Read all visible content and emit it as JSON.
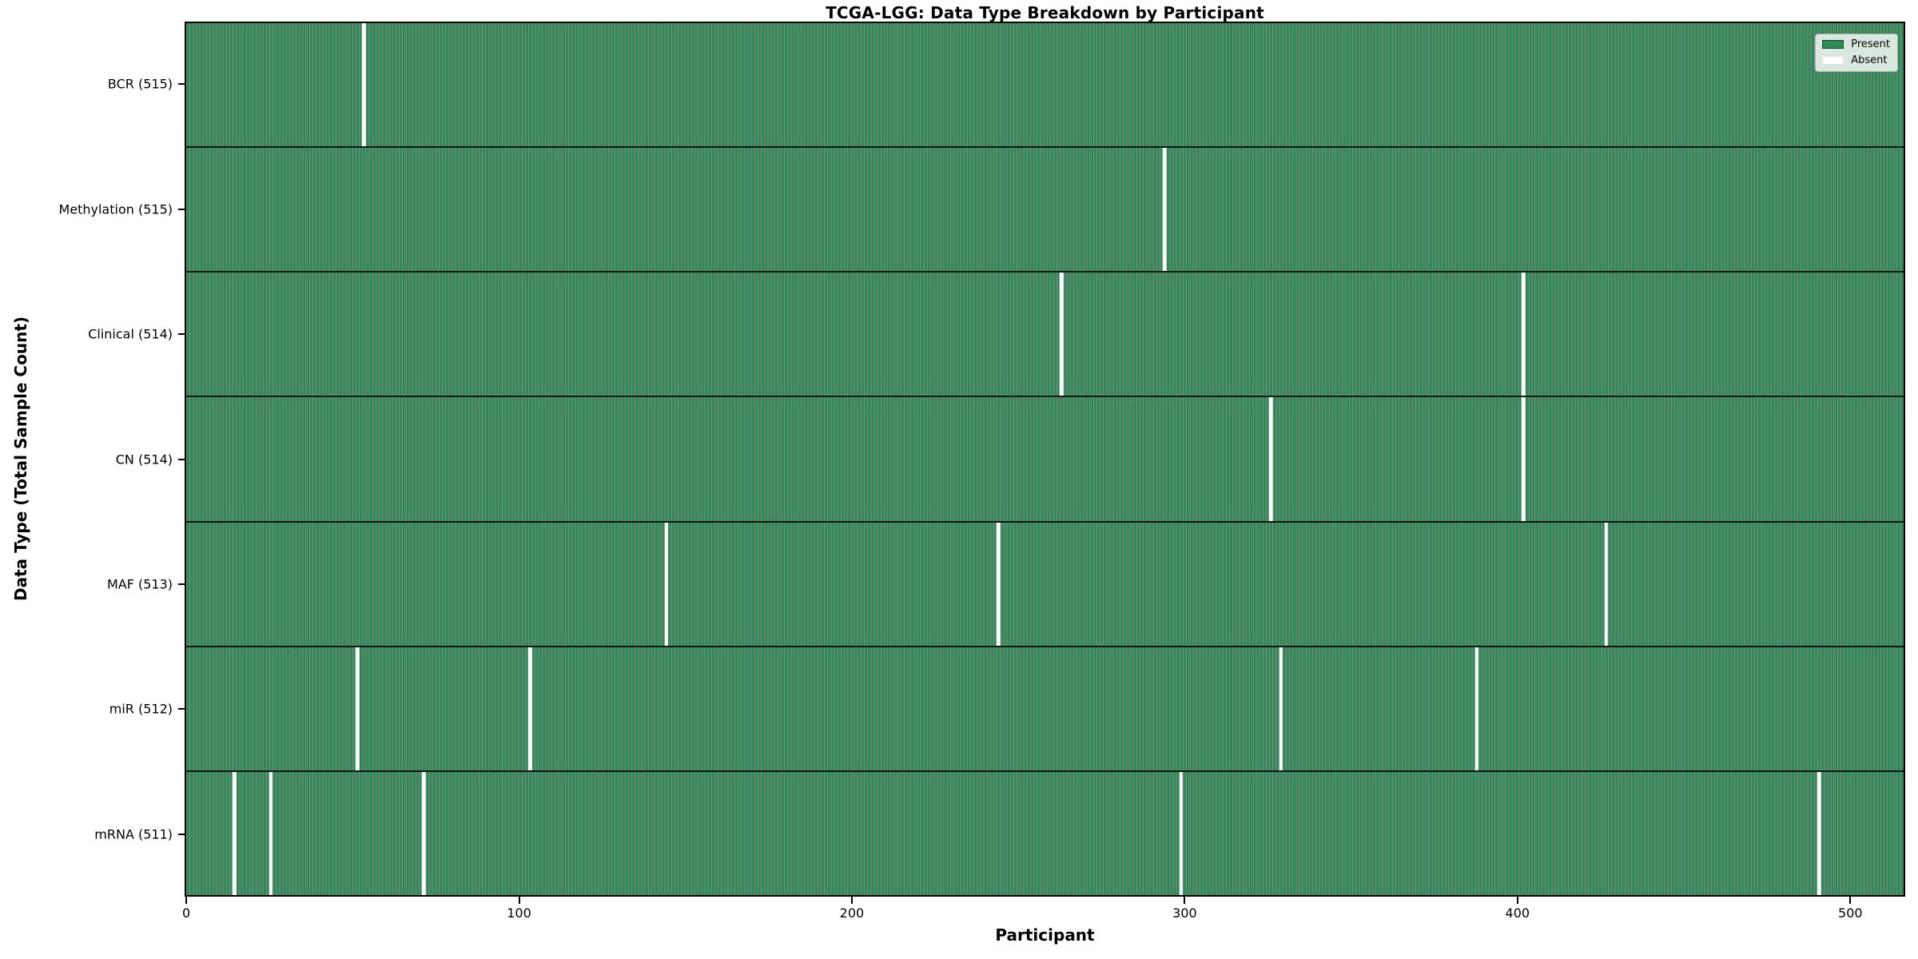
{
  "chart_data": {
    "type": "heatmap",
    "title": "TCGA-LGG: Data Type Breakdown by Participant",
    "xlabel": "Participant",
    "ylabel": "Data Type (Total Sample Count)",
    "x_ticks": [
      0,
      100,
      200,
      300,
      400,
      500
    ],
    "xlim": [
      -0.5,
      516.5
    ],
    "n_participants": 516,
    "grid": false,
    "legend": {
      "position": "upper right",
      "present_label": "Present",
      "absent_label": "Absent"
    },
    "colors": {
      "present": "#2e8b57",
      "bar_edge": "rgba(0,0,0,0.48)",
      "absent": "#ffffff"
    },
    "rows": [
      {
        "data_type": "BCR",
        "label": "BCR (515)",
        "total": 515,
        "absent_participants": [
          53
        ]
      },
      {
        "data_type": "Methylation",
        "label": "Methylation (515)",
        "total": 515,
        "absent_participants": [
          294
        ]
      },
      {
        "data_type": "Clinical",
        "label": "Clinical (514)",
        "total": 514,
        "absent_participants": [
          263,
          402
        ]
      },
      {
        "data_type": "CN",
        "label": "CN (514)",
        "total": 514,
        "absent_participants": [
          326,
          402
        ]
      },
      {
        "data_type": "MAF",
        "label": "MAF (513)",
        "total": 513,
        "absent_participants": [
          144,
          244,
          427
        ]
      },
      {
        "data_type": "miR",
        "label": "miR (512)",
        "total": 512,
        "absent_participants": [
          51,
          103,
          329,
          388
        ]
      },
      {
        "data_type": "mRNA",
        "label": "mRNA (511)",
        "total": 511,
        "absent_participants": [
          14,
          25,
          71,
          299,
          491
        ]
      }
    ]
  }
}
